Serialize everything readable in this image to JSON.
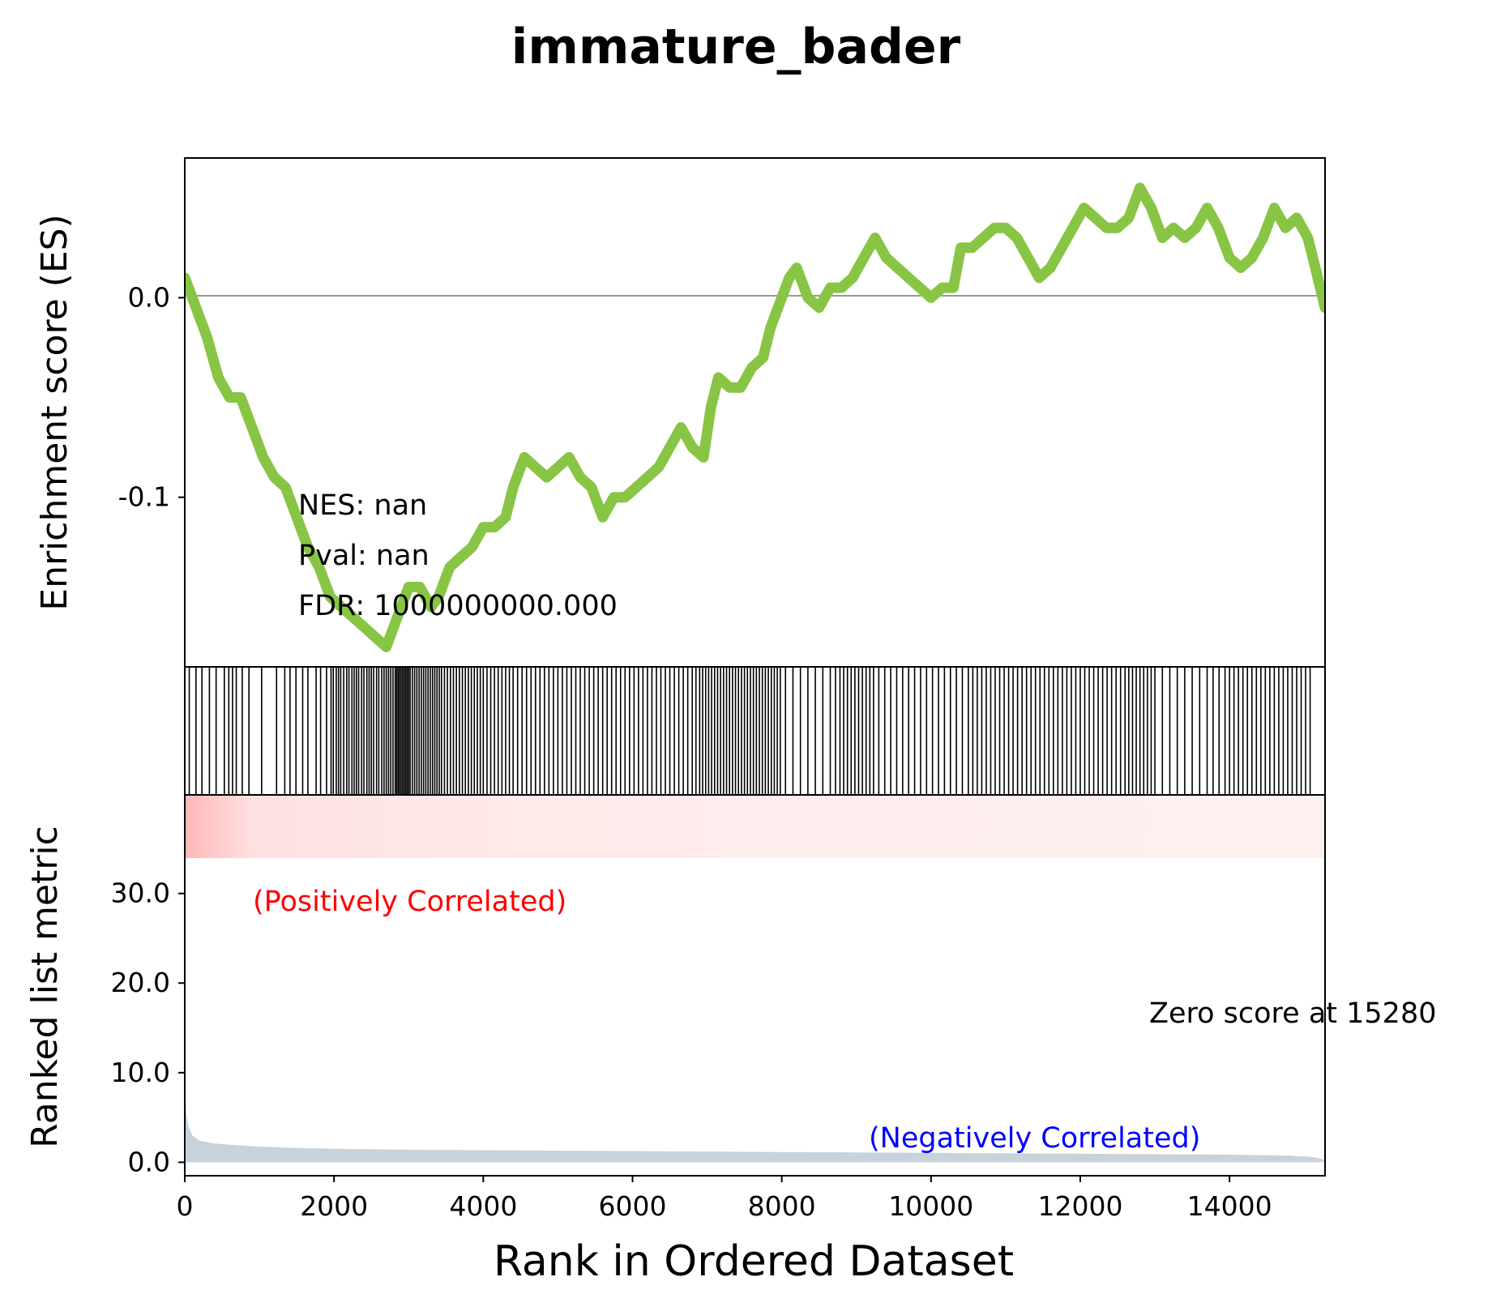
{
  "chart_data": {
    "type": "line",
    "title": "immature_bader",
    "xlabel": "Rank in Ordered Dataset",
    "xlim": [
      0,
      15280
    ],
    "x_ticks": [
      "0",
      "2000",
      "4000",
      "6000",
      "8000",
      "10000",
      "12000",
      "14000"
    ],
    "es_panel": {
      "ylabel": "Enrichment score (ES)",
      "ylim": [
        -0.185,
        0.07
      ],
      "y_ticks": [
        {
          "value": 0.0,
          "label": "0.0"
        },
        {
          "value": -0.1,
          "label": "-0.1"
        }
      ],
      "zero_line": true,
      "line_color": "#88c544",
      "points": [
        [
          0,
          0.01
        ],
        [
          150,
          -0.005
        ],
        [
          300,
          -0.02
        ],
        [
          450,
          -0.04
        ],
        [
          600,
          -0.05
        ],
        [
          750,
          -0.05
        ],
        [
          900,
          -0.065
        ],
        [
          1050,
          -0.08
        ],
        [
          1200,
          -0.09
        ],
        [
          1350,
          -0.095
        ],
        [
          1500,
          -0.11
        ],
        [
          1650,
          -0.125
        ],
        [
          1800,
          -0.135
        ],
        [
          1950,
          -0.15
        ],
        [
          2100,
          -0.155
        ],
        [
          2250,
          -0.16
        ],
        [
          2400,
          -0.165
        ],
        [
          2550,
          -0.17
        ],
        [
          2700,
          -0.175
        ],
        [
          2850,
          -0.16
        ],
        [
          3000,
          -0.145
        ],
        [
          3150,
          -0.145
        ],
        [
          3300,
          -0.155
        ],
        [
          3400,
          -0.15
        ],
        [
          3550,
          -0.135
        ],
        [
          3700,
          -0.13
        ],
        [
          3850,
          -0.125
        ],
        [
          4000,
          -0.115
        ],
        [
          4150,
          -0.115
        ],
        [
          4300,
          -0.11
        ],
        [
          4400,
          -0.095
        ],
        [
          4550,
          -0.08
        ],
        [
          4700,
          -0.085
        ],
        [
          4850,
          -0.09
        ],
        [
          5000,
          -0.085
        ],
        [
          5150,
          -0.08
        ],
        [
          5300,
          -0.09
        ],
        [
          5450,
          -0.095
        ],
        [
          5600,
          -0.11
        ],
        [
          5750,
          -0.1
        ],
        [
          5900,
          -0.1
        ],
        [
          6050,
          -0.095
        ],
        [
          6200,
          -0.09
        ],
        [
          6350,
          -0.085
        ],
        [
          6500,
          -0.075
        ],
        [
          6650,
          -0.065
        ],
        [
          6800,
          -0.075
        ],
        [
          6950,
          -0.08
        ],
        [
          7050,
          -0.055
        ],
        [
          7150,
          -0.04
        ],
        [
          7300,
          -0.045
        ],
        [
          7450,
          -0.045
        ],
        [
          7600,
          -0.035
        ],
        [
          7750,
          -0.03
        ],
        [
          7850,
          -0.015
        ],
        [
          8000,
          0.0
        ],
        [
          8100,
          0.01
        ],
        [
          8200,
          0.015
        ],
        [
          8350,
          0.0
        ],
        [
          8500,
          -0.005
        ],
        [
          8650,
          0.005
        ],
        [
          8800,
          0.005
        ],
        [
          8950,
          0.01
        ],
        [
          9100,
          0.02
        ],
        [
          9250,
          0.03
        ],
        [
          9400,
          0.02
        ],
        [
          9550,
          0.015
        ],
        [
          9700,
          0.01
        ],
        [
          9850,
          0.005
        ],
        [
          10000,
          0.0
        ],
        [
          10150,
          0.005
        ],
        [
          10300,
          0.005
        ],
        [
          10400,
          0.025
        ],
        [
          10550,
          0.025
        ],
        [
          10700,
          0.03
        ],
        [
          10850,
          0.035
        ],
        [
          11000,
          0.035
        ],
        [
          11150,
          0.03
        ],
        [
          11300,
          0.02
        ],
        [
          11450,
          0.01
        ],
        [
          11600,
          0.015
        ],
        [
          11750,
          0.025
        ],
        [
          11900,
          0.035
        ],
        [
          12050,
          0.045
        ],
        [
          12200,
          0.04
        ],
        [
          12350,
          0.035
        ],
        [
          12500,
          0.035
        ],
        [
          12650,
          0.04
        ],
        [
          12800,
          0.055
        ],
        [
          12950,
          0.045
        ],
        [
          13100,
          0.03
        ],
        [
          13250,
          0.035
        ],
        [
          13400,
          0.03
        ],
        [
          13550,
          0.035
        ],
        [
          13700,
          0.045
        ],
        [
          13850,
          0.035
        ],
        [
          14000,
          0.02
        ],
        [
          14150,
          0.015
        ],
        [
          14300,
          0.02
        ],
        [
          14450,
          0.03
        ],
        [
          14600,
          0.045
        ],
        [
          14750,
          0.035
        ],
        [
          14900,
          0.04
        ],
        [
          15050,
          0.03
        ],
        [
          15150,
          0.015
        ],
        [
          15280,
          -0.005
        ]
      ]
    },
    "hits_panel": {
      "ranks": [
        60,
        150,
        230,
        330,
        420,
        530,
        590,
        640,
        690,
        770,
        860,
        1030,
        1230,
        1340,
        1410,
        1490,
        1580,
        1650,
        1760,
        1820,
        1900,
        1960,
        1990,
        2030,
        2060,
        2090,
        2130,
        2170,
        2200,
        2240,
        2270,
        2300,
        2330,
        2370,
        2400,
        2440,
        2470,
        2500,
        2530,
        2570,
        2600,
        2640,
        2670,
        2700,
        2730,
        2760,
        2790,
        2820,
        2840,
        2860,
        2880,
        2900,
        2920,
        2940,
        2960,
        2980,
        3000,
        3020,
        3050,
        3080,
        3110,
        3140,
        3170,
        3200,
        3230,
        3260,
        3290,
        3320,
        3350,
        3380,
        3410,
        3440,
        3480,
        3520,
        3560,
        3600,
        3640,
        3680,
        3720,
        3760,
        3800,
        3840,
        3880,
        3920,
        3960,
        4000,
        4050,
        4100,
        4150,
        4200,
        4250,
        4300,
        4350,
        4400,
        4460,
        4520,
        4580,
        4640,
        4700,
        4760,
        4820,
        4880,
        4940,
        5000,
        5060,
        5120,
        5180,
        5240,
        5300,
        5360,
        5420,
        5480,
        5540,
        5600,
        5660,
        5720,
        5780,
        5840,
        5900,
        5960,
        6020,
        6080,
        6140,
        6200,
        6260,
        6320,
        6380,
        6440,
        6500,
        6560,
        6620,
        6680,
        6740,
        6800,
        6850,
        6900,
        6940,
        6980,
        7020,
        7060,
        7100,
        7140,
        7180,
        7220,
        7260,
        7300,
        7340,
        7380,
        7420,
        7460,
        7500,
        7540,
        7580,
        7620,
        7660,
        7700,
        7740,
        7780,
        7820,
        7860,
        7900,
        7940,
        7980,
        8050,
        8150,
        8250,
        8350,
        8450,
        8550,
        8650,
        8720,
        8780,
        8830,
        8880,
        8930,
        8980,
        9030,
        9080,
        9130,
        9180,
        9230,
        9300,
        9380,
        9460,
        9540,
        9620,
        9700,
        9780,
        9860,
        9940,
        10020,
        10100,
        10180,
        10260,
        10340,
        10420,
        10500,
        10560,
        10620,
        10680,
        10740,
        10800,
        10860,
        10920,
        10980,
        11040,
        11100,
        11160,
        11220,
        11280,
        11340,
        11400,
        11460,
        11520,
        11580,
        11640,
        11700,
        11760,
        11820,
        11880,
        11940,
        12000,
        12060,
        12120,
        12180,
        12240,
        12300,
        12360,
        12420,
        12480,
        12540,
        12600,
        12650,
        12700,
        12750,
        12800,
        12850,
        12900,
        12950,
        13000,
        13100,
        13200,
        13300,
        13400,
        13500,
        13600,
        13700,
        13780,
        13860,
        13940,
        14000,
        14060,
        14120,
        14180,
        14240,
        14300,
        14360,
        14420,
        14480,
        14540,
        14600,
        14660,
        14720,
        14780,
        14840,
        14900,
        14960,
        15020,
        15080
      ]
    },
    "metric_panel": {
      "ylabel": "Ranked list metric",
      "ylim": [
        -1.5,
        41
      ],
      "y_ticks": [
        {
          "value": 0,
          "label": "0.0"
        },
        {
          "value": 10,
          "label": "10.0"
        },
        {
          "value": 20,
          "label": "20.0"
        },
        {
          "value": 30,
          "label": "30.0"
        }
      ],
      "fill_color": "#c8d2db",
      "points": [
        [
          0,
          8.5
        ],
        [
          20,
          5.5
        ],
        [
          50,
          4.0
        ],
        [
          100,
          3.0
        ],
        [
          200,
          2.4
        ],
        [
          400,
          2.1
        ],
        [
          700,
          1.9
        ],
        [
          1000,
          1.75
        ],
        [
          1500,
          1.6
        ],
        [
          2000,
          1.5
        ],
        [
          3000,
          1.4
        ],
        [
          4000,
          1.35
        ],
        [
          6000,
          1.25
        ],
        [
          8000,
          1.15
        ],
        [
          10000,
          1.05
        ],
        [
          12000,
          0.95
        ],
        [
          14000,
          0.85
        ],
        [
          14800,
          0.75
        ],
        [
          15100,
          0.6
        ],
        [
          15250,
          0.35
        ],
        [
          15280,
          0.0
        ]
      ],
      "positive_label": "(Positively Correlated)",
      "positive_color": "#ff0000",
      "negative_label": "(Negatively Correlated)",
      "negative_color": "#0000ff",
      "zero_score_label": "Zero score at 15280"
    },
    "stats": {
      "nes": "NES: nan",
      "pval": "Pval: nan",
      "fdr": "FDR: 1000000000.000"
    }
  }
}
